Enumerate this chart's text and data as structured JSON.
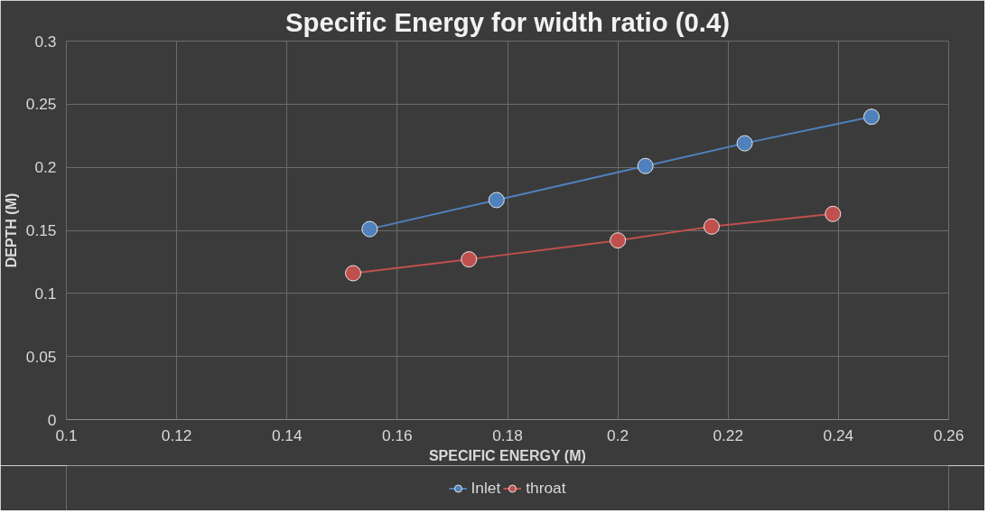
{
  "chart_data": {
    "type": "line",
    "title": "Specific Energy for width ratio (0.4)",
    "xlabel": "SPECIFIC ENERGY (M)",
    "ylabel": "DEPTH (M)",
    "xlim": [
      0.1,
      0.26
    ],
    "xticks": [
      0.1,
      0.12,
      0.14,
      0.16,
      0.18,
      0.2,
      0.22,
      0.24,
      0.26
    ],
    "ylim": [
      0,
      0.3
    ],
    "yticks": [
      0,
      0.05,
      0.1,
      0.15,
      0.2,
      0.25,
      0.3
    ],
    "grid": true,
    "legend": "bottom",
    "marker": "circle",
    "line_style": "solid",
    "series": [
      {
        "name": "Inlet",
        "color": "#4f81bd",
        "x": [
          0.155,
          0.178,
          0.205,
          0.223,
          0.246
        ],
        "values": [
          0.151,
          0.174,
          0.201,
          0.219,
          0.24
        ]
      },
      {
        "name": "throat",
        "color": "#c0504d",
        "x": [
          0.152,
          0.173,
          0.2,
          0.217,
          0.239
        ],
        "values": [
          0.116,
          0.127,
          0.142,
          0.153,
          0.163
        ]
      }
    ]
  }
}
